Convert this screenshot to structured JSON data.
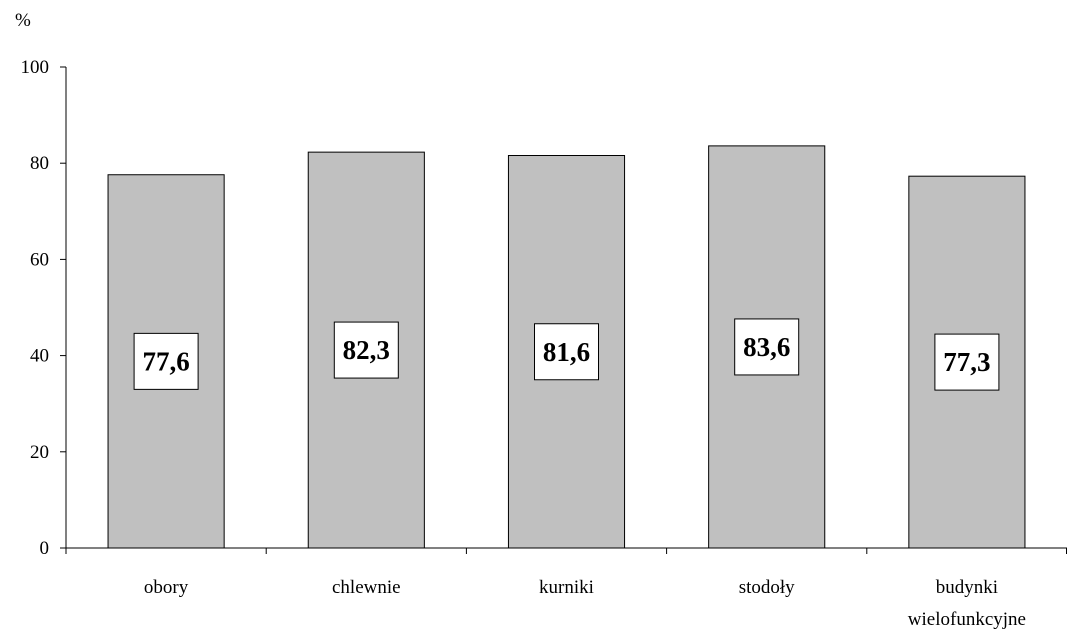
{
  "chart_data": {
    "type": "bar",
    "ylabel": "%",
    "categories": [
      [
        "obory"
      ],
      [
        "chlewnie"
      ],
      [
        "kurniki"
      ],
      [
        "stodoły"
      ],
      [
        "budynki",
        "wielofunkcyjne"
      ]
    ],
    "values": [
      77.6,
      82.3,
      81.6,
      83.6,
      77.3
    ],
    "data_labels": [
      "77,6",
      "82,3",
      "81,6",
      "83,6",
      "77,3"
    ],
    "ylim": [
      0,
      100
    ],
    "yticks": [
      0,
      20,
      40,
      60,
      80,
      100
    ],
    "ytick_labels": [
      "0",
      "20",
      "40",
      "60",
      "80",
      "100"
    ],
    "grid": false,
    "legend": "none",
    "colors": {
      "bar_fill": "#c0c0c0",
      "bar_stroke": "#000000",
      "label_box_fill": "#ffffff",
      "axis": "#000000"
    }
  }
}
